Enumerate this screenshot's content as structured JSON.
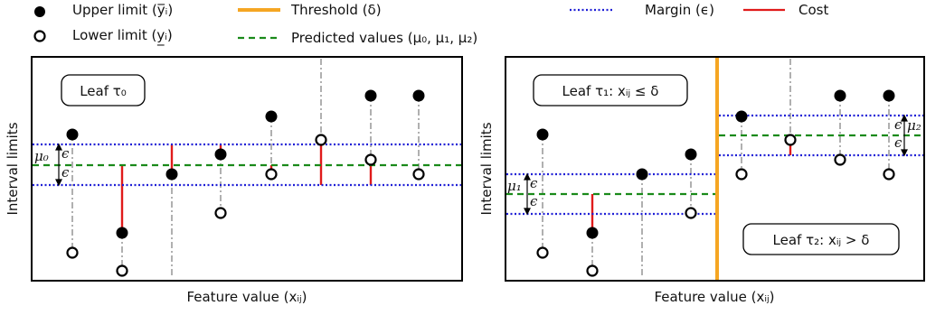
{
  "legend": {
    "upper": "Upper limit (y̅ᵢ)",
    "lower": "Lower limit (y̲ᵢ)",
    "threshold": "Threshold (δ)",
    "predicted": "Predicted values (μ₀, μ₁, μ₂)",
    "margin": "Margin (ϵ)",
    "cost": "Cost"
  },
  "left_panel": {
    "leaf_label": "Leaf τ₀",
    "xlabel": "Feature value (xᵢⱼ)",
    "ylabel": "Interval limits",
    "mu_label": "μ₀",
    "eps_label": "ϵ"
  },
  "right_panel": {
    "leaf1_label": "Leaf τ₁: xᵢⱼ ≤ δ",
    "leaf2_label": "Leaf τ₂: xᵢⱼ > δ",
    "xlabel": "Feature value (xᵢⱼ)",
    "ylabel": "Interval limits",
    "mu1_label": "μ₁",
    "mu2_label": "μ₂",
    "eps_label": "ϵ"
  },
  "colors": {
    "threshold": "#f5a623",
    "predicted": "#1a8a1a",
    "margin": "#1f1fd6",
    "cost": "#e01b1b",
    "connector": "#a8a8a8"
  }
}
